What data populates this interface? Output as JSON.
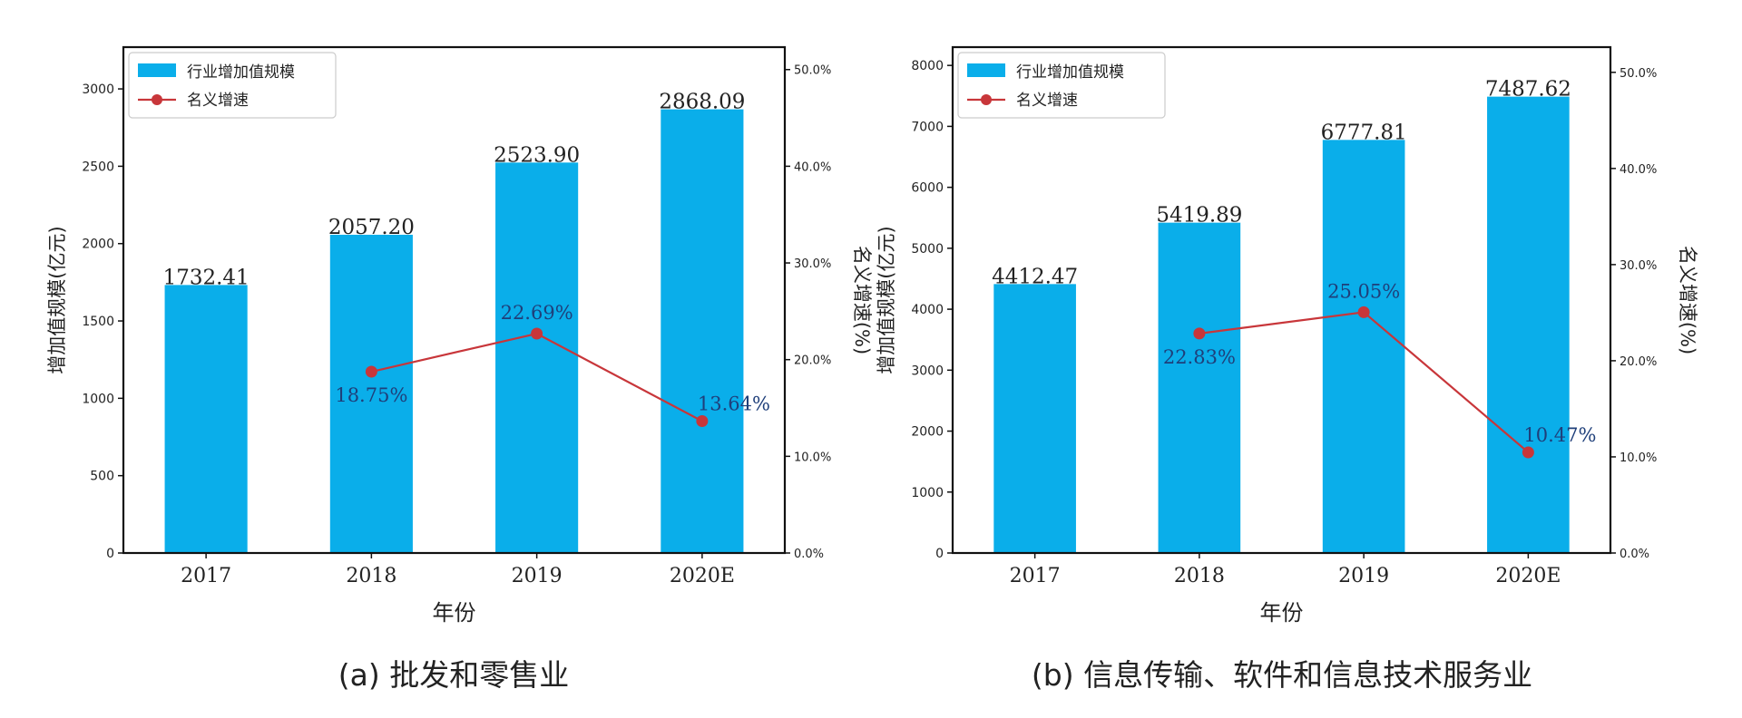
{
  "colors": {
    "bar": "#0aaeea",
    "line": "#c8363a",
    "axis": "#111111",
    "text": "#222222"
  },
  "chart_data": [
    {
      "type": "bar",
      "caption": "(a) 批发和零售业",
      "xlabel": "年份",
      "ylabel": "增加值规模(亿元)",
      "y2label": "名义增速(%)",
      "categories": [
        "2017",
        "2018",
        "2019",
        "2020E"
      ],
      "ylim": [
        0,
        3270
      ],
      "yticks": [
        0,
        500,
        1000,
        1500,
        2000,
        2500,
        3000
      ],
      "y2lim": [
        0,
        0.5232
      ],
      "y2ticks": [
        "0.0%",
        "10.0%",
        "20.0%",
        "30.0%",
        "40.0%",
        "50.0%"
      ],
      "legend_position": "top-left",
      "grid": false,
      "series": [
        {
          "name": "行业增加值规模",
          "kind": "bar",
          "axis": "left",
          "values": [
            1732.41,
            2057.2,
            2523.9,
            2868.09
          ],
          "labels": [
            "1732.41",
            "2057.20",
            "2523.90",
            "2868.09"
          ]
        },
        {
          "name": "名义增速",
          "kind": "line",
          "axis": "right",
          "values": [
            null,
            0.1875,
            0.2269,
            0.1364
          ],
          "labels": [
            null,
            "18.75%",
            "22.69%",
            "13.64%"
          ]
        }
      ]
    },
    {
      "type": "bar",
      "caption": "(b) 信息传输、软件和信息技术服务业",
      "xlabel": "年份",
      "ylabel": "增加值规模(亿元)",
      "y2label": "名义增速(%)",
      "categories": [
        "2017",
        "2018",
        "2019",
        "2020E"
      ],
      "ylim": [
        0,
        8300
      ],
      "yticks": [
        0,
        1000,
        2000,
        3000,
        4000,
        5000,
        6000,
        7000,
        8000
      ],
      "y2lim": [
        0,
        0.5262
      ],
      "y2ticks": [
        "0.0%",
        "10.0%",
        "20.0%",
        "30.0%",
        "40.0%",
        "50.0%"
      ],
      "legend_position": "top-left",
      "grid": false,
      "series": [
        {
          "name": "行业增加值规模",
          "kind": "bar",
          "axis": "left",
          "values": [
            4412.47,
            5419.89,
            6777.81,
            7487.62
          ],
          "labels": [
            "4412.47",
            "5419.89",
            "6777.81",
            "7487.62"
          ]
        },
        {
          "name": "名义增速",
          "kind": "line",
          "axis": "right",
          "values": [
            null,
            0.2283,
            0.2505,
            0.1047
          ],
          "labels": [
            null,
            "22.83%",
            "25.05%",
            "10.47%"
          ]
        }
      ]
    }
  ]
}
